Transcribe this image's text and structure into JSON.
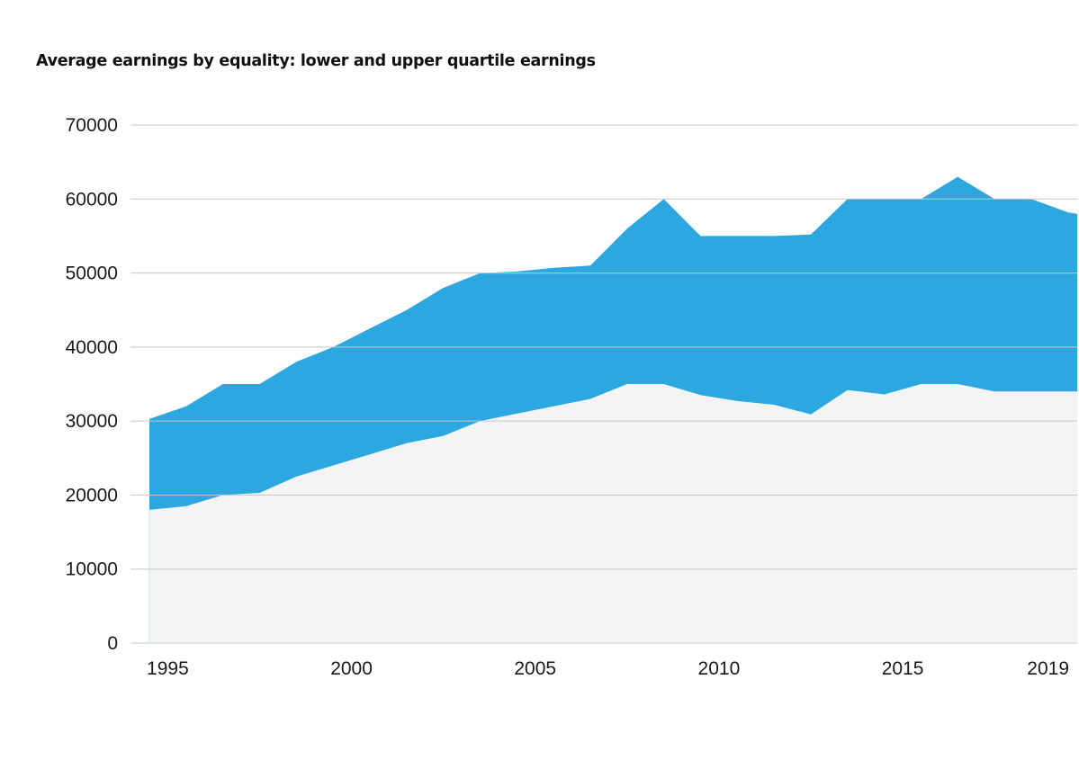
{
  "chart_data": {
    "type": "area",
    "title": "Average earnings by equality: lower and upper quartile earnings",
    "xlabel": "",
    "ylabel": "",
    "ylim": [
      0,
      70000
    ],
    "xlim": [
      1994.5,
      2019.75
    ],
    "y_ticks": [
      0,
      10000,
      20000,
      30000,
      40000,
      50000,
      60000,
      70000
    ],
    "y_tick_labels": [
      "0",
      "10000",
      "20000",
      "30000",
      "40000",
      "50000",
      "60000",
      "70000"
    ],
    "x_ticks": [
      1995,
      2000,
      2005,
      2010,
      2015,
      2019
    ],
    "x_tick_labels": [
      "1995",
      "2000",
      "2005",
      "2010",
      "2015",
      "2019"
    ],
    "grid": true,
    "legend": "none",
    "x": [
      1994.5,
      1995.5,
      1996.5,
      1997.5,
      1998.5,
      1999.5,
      2000.5,
      2001.5,
      2002.5,
      2003.5,
      2004.5,
      2005.5,
      2006.5,
      2007.5,
      2008.5,
      2009.5,
      2010.5,
      2011.5,
      2012.5,
      2013.5,
      2014.5,
      2015.5,
      2016.5,
      2017.5,
      2018.5,
      2019.5,
      2019.75
    ],
    "series": [
      {
        "color": "#f4f4f4",
        "values": [
          18000,
          18500,
          20000,
          20300,
          22500,
          24000,
          25500,
          27000,
          28000,
          30000,
          31000,
          32000,
          33000,
          35000,
          35000,
          33500,
          32700,
          32200,
          30900,
          34200,
          33600,
          35000,
          35000,
          34000,
          34000,
          34000,
          34000
        ]
      },
      {
        "color": "#2ca7df",
        "values": [
          30300,
          32000,
          35000,
          35000,
          38000,
          40000,
          42500,
          45000,
          48000,
          50000,
          50200,
          50700,
          51000,
          56000,
          60000,
          55000,
          55000,
          55000,
          55200,
          60000,
          60000,
          60000,
          63000,
          60000,
          60000,
          58200,
          58000
        ]
      }
    ],
    "colors": {
      "grid": "#c7c7c7",
      "lower_fill": "#f4f4f4",
      "upper_fill": "#2ca7df",
      "text": "#1a1a1a"
    }
  }
}
